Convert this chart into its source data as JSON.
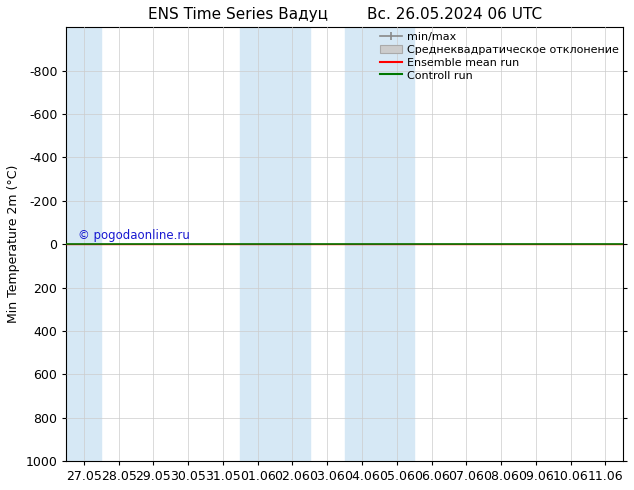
{
  "title": "ENS Time Series Вадуц        Вс. 26.05.2024 06 UTC",
  "ylabel": "Min Temperature 2m (°C)",
  "ylim": [
    -1000,
    1000
  ],
  "yticks": [
    -800,
    -600,
    -400,
    -200,
    0,
    200,
    400,
    600,
    800,
    1000
  ],
  "xtick_labels": [
    "27.05",
    "28.05",
    "29.05",
    "30.05",
    "31.05",
    "01.06",
    "02.06",
    "03.06",
    "04.06",
    "05.06",
    "06.06",
    "07.06",
    "08.06",
    "09.06",
    "10.06",
    "11.06"
  ],
  "shade_ranges": [
    [
      0,
      1
    ],
    [
      5,
      7
    ],
    [
      8,
      10
    ]
  ],
  "shaded_color": "#d6e8f5",
  "green_line_color": "#007700",
  "red_line_color": "#ff0000",
  "watermark": "© pogodaonline.ru",
  "watermark_color": "#0000cc",
  "legend_labels": [
    "min/max",
    "Среднеквадратическое отклонение",
    "Ensemble mean run",
    "Controll run"
  ],
  "bg_color": "#ffffff",
  "title_fontsize": 11,
  "axis_fontsize": 9,
  "legend_fontsize": 8
}
